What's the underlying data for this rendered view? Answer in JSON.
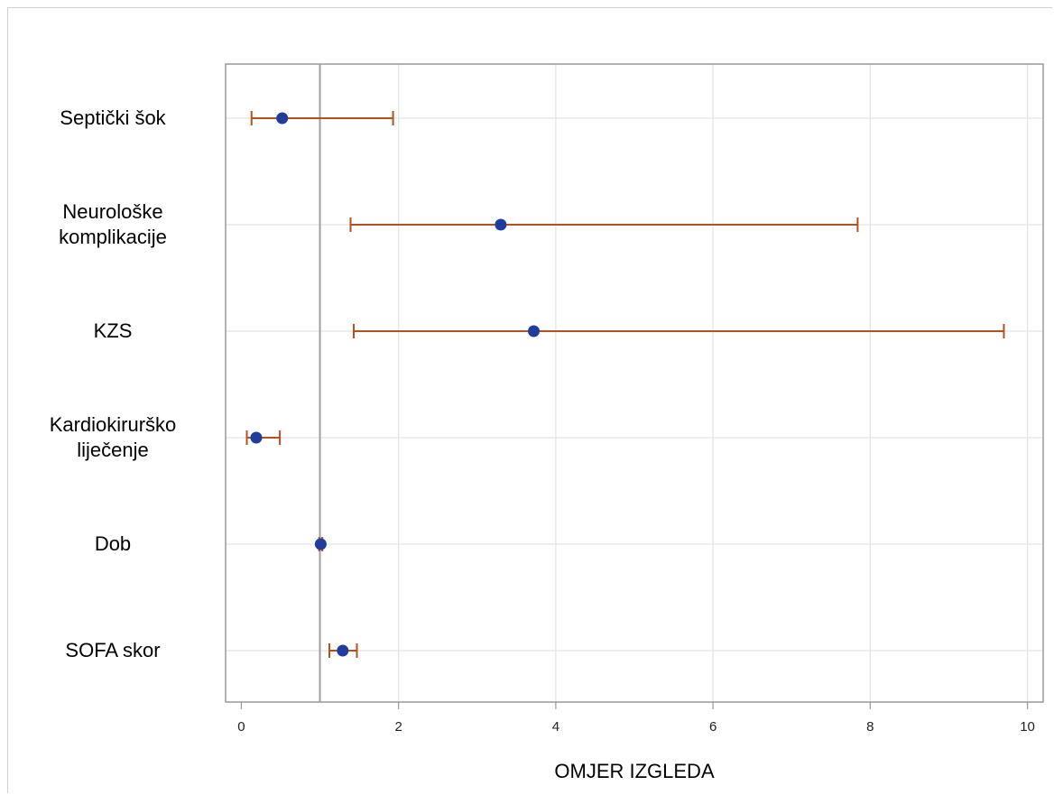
{
  "chart_data": {
    "type": "forest",
    "xlabel": "OMJER IZGLEDA",
    "xlim": [
      -0.2,
      10.2
    ],
    "xticks": [
      0,
      2,
      4,
      6,
      8,
      10
    ],
    "reference_line": 1,
    "grid": true,
    "rows": [
      {
        "label": "Septički šok",
        "estimate": 0.52,
        "lower": 0.13,
        "upper": 1.93
      },
      {
        "label": "Neurološke\nkomplikacije",
        "estimate": 3.3,
        "lower": 1.39,
        "upper": 7.84
      },
      {
        "label": "KZS",
        "estimate": 3.72,
        "lower": 1.43,
        "upper": 9.7
      },
      {
        "label": "Kardiokirurško\nliječenje",
        "estimate": 0.19,
        "lower": 0.07,
        "upper": 0.49
      },
      {
        "label": "Dob",
        "estimate": 1.01,
        "lower": 0.99,
        "upper": 1.03
      },
      {
        "label": "SOFA skor",
        "estimate": 1.29,
        "lower": 1.12,
        "upper": 1.47
      }
    ],
    "colors": {
      "point": "#1f3c9e",
      "ci": "#b5501f",
      "grid": "#e3e3e3",
      "axis": "#9a9a9a",
      "refline": "#a0a0a0"
    }
  }
}
